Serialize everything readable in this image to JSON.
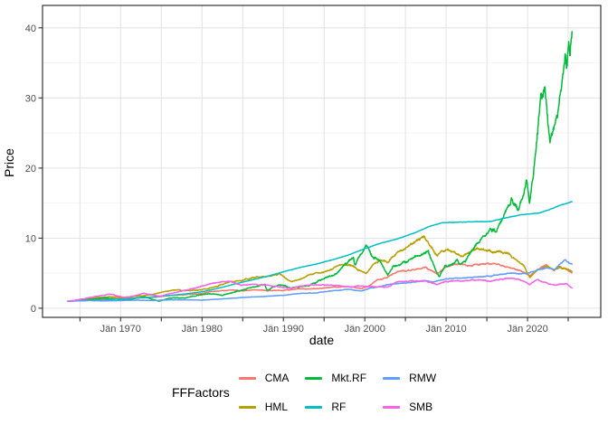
{
  "chart_data": {
    "type": "line",
    "xlabel": "date",
    "ylabel": "Price",
    "legend_title": "FFFactors",
    "x_domain": [
      1960.4,
      2029.0
    ],
    "y_domain": [
      -1.3,
      43.2
    ],
    "x_ticks": [
      {
        "v": 1965,
        "label": ""
      },
      {
        "v": 1970,
        "label": "Jän 1970"
      },
      {
        "v": 1975,
        "label": ""
      },
      {
        "v": 1980,
        "label": "Jän 1980"
      },
      {
        "v": 1985,
        "label": ""
      },
      {
        "v": 1990,
        "label": "Jän 1990"
      },
      {
        "v": 1995,
        "label": ""
      },
      {
        "v": 2000,
        "label": "Jän 2000"
      },
      {
        "v": 2005,
        "label": ""
      },
      {
        "v": 2010,
        "label": "Jän 2010"
      },
      {
        "v": 2015,
        "label": ""
      },
      {
        "v": 2020,
        "label": "Jän 2020"
      },
      {
        "v": 2025,
        "label": ""
      }
    ],
    "y_ticks_major": [
      {
        "v": 0,
        "label": "0"
      },
      {
        "v": 10,
        "label": "10"
      },
      {
        "v": 20,
        "label": "20"
      },
      {
        "v": 30,
        "label": "30"
      },
      {
        "v": 40,
        "label": "40"
      }
    ],
    "y_ticks_minor": [
      5,
      15,
      25,
      35
    ],
    "colors": {
      "grid_major": "#e3e3e3",
      "grid_minor": "#efefef",
      "panel_border": "#333333",
      "tick_mark": "#333333",
      "tick_text": "#4d4d4d"
    },
    "series": [
      {
        "name": "CMA",
        "color": "#F8766D",
        "wiggle": 0.018,
        "points": [
          [
            1963.5,
            1.0
          ],
          [
            1965,
            1.1
          ],
          [
            1966,
            1.2
          ],
          [
            1968,
            1.35
          ],
          [
            1970,
            1.4
          ],
          [
            1972,
            1.45
          ],
          [
            1974,
            1.55
          ],
          [
            1976,
            1.8
          ],
          [
            1978,
            1.95
          ],
          [
            1980,
            2.1
          ],
          [
            1981.2,
            2.4
          ],
          [
            1983.5,
            2.6
          ],
          [
            1985,
            2.5
          ],
          [
            1986.8,
            2.65
          ],
          [
            1988,
            2.5
          ],
          [
            1990,
            2.55
          ],
          [
            1992,
            2.75
          ],
          [
            1994,
            2.8
          ],
          [
            1996,
            3.0
          ],
          [
            1998,
            3.1
          ],
          [
            1999.6,
            2.8
          ],
          [
            2000.4,
            3.1
          ],
          [
            2001.5,
            4.0
          ],
          [
            2002.8,
            4.4
          ],
          [
            2004,
            5.2
          ],
          [
            2006,
            5.5
          ],
          [
            2007.5,
            5.8
          ],
          [
            2008.9,
            4.9
          ],
          [
            2010,
            6.0
          ],
          [
            2011.5,
            6.3
          ],
          [
            2013,
            6.1
          ],
          [
            2015,
            6.4
          ],
          [
            2016.2,
            6.3
          ],
          [
            2017.5,
            5.9
          ],
          [
            2019,
            5.4
          ],
          [
            2020.3,
            4.6
          ],
          [
            2021,
            5.3
          ],
          [
            2022.3,
            6.2
          ],
          [
            2023.2,
            5.5
          ],
          [
            2024,
            5.8
          ],
          [
            2024.8,
            5.6
          ],
          [
            2025.5,
            5.0
          ]
        ]
      },
      {
        "name": "HML",
        "color": "#B79F00",
        "wiggle": 0.02,
        "points": [
          [
            1963.5,
            1.0
          ],
          [
            1965.5,
            1.25
          ],
          [
            1967,
            1.5
          ],
          [
            1968.8,
            1.65
          ],
          [
            1970.3,
            1.55
          ],
          [
            1972,
            1.7
          ],
          [
            1973.8,
            1.95
          ],
          [
            1975,
            2.3
          ],
          [
            1976.8,
            2.65
          ],
          [
            1978,
            2.5
          ],
          [
            1980,
            2.65
          ],
          [
            1981.5,
            3.0
          ],
          [
            1983.5,
            3.8
          ],
          [
            1985,
            4.0
          ],
          [
            1986.5,
            4.4
          ],
          [
            1988.5,
            4.65
          ],
          [
            1989.5,
            4.9
          ],
          [
            1991,
            3.75
          ],
          [
            1992.5,
            4.4
          ],
          [
            1993.8,
            4.95
          ],
          [
            1995,
            5.1
          ],
          [
            1997,
            6.2
          ],
          [
            1998.3,
            6.1
          ],
          [
            1999.2,
            5.5
          ],
          [
            2000.2,
            4.9
          ],
          [
            2001,
            6.2
          ],
          [
            2002,
            6.9
          ],
          [
            2002.8,
            6.5
          ],
          [
            2004,
            8.0
          ],
          [
            2005,
            8.6
          ],
          [
            2006.6,
            9.9
          ],
          [
            2007.3,
            10.2
          ],
          [
            2008,
            9.0
          ],
          [
            2008.9,
            7.4
          ],
          [
            2009.5,
            8.2
          ],
          [
            2010.5,
            8.3
          ],
          [
            2011.8,
            7.4
          ],
          [
            2013,
            8.0
          ],
          [
            2013.8,
            8.6
          ],
          [
            2015,
            8.2
          ],
          [
            2016.5,
            8.0
          ],
          [
            2017.5,
            7.9
          ],
          [
            2018.5,
            7.0
          ],
          [
            2019.5,
            6.2
          ],
          [
            2020.3,
            4.3
          ],
          [
            2021,
            5.3
          ],
          [
            2021.5,
            5.6
          ],
          [
            2022.5,
            6.0
          ],
          [
            2023.3,
            5.4
          ],
          [
            2024,
            5.9
          ],
          [
            2024.7,
            5.6
          ],
          [
            2025.5,
            5.3
          ]
        ]
      },
      {
        "name": "Mkt.RF",
        "color": "#00BA38",
        "wiggle": 0.028,
        "points": [
          [
            1963.5,
            1.0
          ],
          [
            1965,
            1.15
          ],
          [
            1966.8,
            1.3
          ],
          [
            1968,
            1.5
          ],
          [
            1970.5,
            1.15
          ],
          [
            1972.9,
            1.65
          ],
          [
            1974.7,
            1.0
          ],
          [
            1976,
            1.45
          ],
          [
            1978,
            1.5
          ],
          [
            1980.8,
            2.1
          ],
          [
            1982.5,
            1.85
          ],
          [
            1984,
            2.3
          ],
          [
            1986,
            3.0
          ],
          [
            1987.7,
            3.4
          ],
          [
            1987.95,
            2.6
          ],
          [
            1989.7,
            3.4
          ],
          [
            1990.8,
            2.9
          ],
          [
            1993,
            3.2
          ],
          [
            1995,
            4.2
          ],
          [
            1996.5,
            5.0
          ],
          [
            1997.5,
            6.2
          ],
          [
            1998.6,
            7.2
          ],
          [
            1998.8,
            6.1
          ],
          [
            1999.3,
            7.3
          ],
          [
            2000.2,
            8.8
          ],
          [
            2001.1,
            7.2
          ],
          [
            2002,
            6.5
          ],
          [
            2002.8,
            4.7
          ],
          [
            2003.5,
            5.9
          ],
          [
            2004.5,
            6.3
          ],
          [
            2006,
            7.2
          ],
          [
            2007.8,
            8.1
          ],
          [
            2008.7,
            5.5
          ],
          [
            2009.15,
            4.5
          ],
          [
            2009.8,
            6.0
          ],
          [
            2010.5,
            6.2
          ],
          [
            2011.4,
            6.9
          ],
          [
            2011.8,
            6.1
          ],
          [
            2012.5,
            7.0
          ],
          [
            2013.9,
            9.3
          ],
          [
            2014.9,
            10.7
          ],
          [
            2015.6,
            11.3
          ],
          [
            2016.1,
            10.8
          ],
          [
            2017,
            13.0
          ],
          [
            2018.05,
            15.5
          ],
          [
            2018.95,
            13.8
          ],
          [
            2019.9,
            18.5
          ],
          [
            2020.25,
            15.0
          ],
          [
            2021,
            22.0
          ],
          [
            2021.6,
            31.0
          ],
          [
            2021.85,
            29.5
          ],
          [
            2022.1,
            31.5
          ],
          [
            2022.75,
            24.0
          ],
          [
            2023.2,
            26.0
          ],
          [
            2023.7,
            28.0
          ],
          [
            2024.2,
            32.0
          ],
          [
            2024.65,
            36.5
          ],
          [
            2024.85,
            34.0
          ],
          [
            2025.05,
            38.0
          ],
          [
            2025.2,
            36.0
          ],
          [
            2025.5,
            40.3
          ]
        ]
      },
      {
        "name": "RF",
        "color": "#00BFC4",
        "wiggle": 0.002,
        "points": [
          [
            1963.5,
            1.0
          ],
          [
            1966,
            1.1
          ],
          [
            1968,
            1.2
          ],
          [
            1970,
            1.32
          ],
          [
            1972,
            1.45
          ],
          [
            1974,
            1.62
          ],
          [
            1976,
            1.82
          ],
          [
            1978,
            2.05
          ],
          [
            1980,
            2.35
          ],
          [
            1982,
            2.85
          ],
          [
            1984,
            3.45
          ],
          [
            1986,
            4.0
          ],
          [
            1988,
            4.55
          ],
          [
            1990,
            5.2
          ],
          [
            1992,
            5.8
          ],
          [
            1994,
            6.3
          ],
          [
            1996,
            6.9
          ],
          [
            1998,
            7.6
          ],
          [
            2000,
            8.5
          ],
          [
            2002,
            9.3
          ],
          [
            2004,
            9.9
          ],
          [
            2006,
            10.7
          ],
          [
            2008,
            11.7
          ],
          [
            2009.5,
            12.2
          ],
          [
            2012,
            12.3
          ],
          [
            2015.5,
            12.4
          ],
          [
            2017,
            12.8
          ],
          [
            2019,
            13.3
          ],
          [
            2020.5,
            13.5
          ],
          [
            2021.5,
            13.6
          ],
          [
            2023,
            14.2
          ],
          [
            2024,
            14.7
          ],
          [
            2025.5,
            15.2
          ]
        ]
      },
      {
        "name": "RMW",
        "color": "#619CFF",
        "wiggle": 0.015,
        "points": [
          [
            1963.5,
            1.0
          ],
          [
            1966,
            1.1
          ],
          [
            1968,
            1.05
          ],
          [
            1970,
            1.1
          ],
          [
            1972,
            1.15
          ],
          [
            1974,
            1.1
          ],
          [
            1976,
            1.2
          ],
          [
            1978,
            1.2
          ],
          [
            1980,
            1.15
          ],
          [
            1982,
            1.3
          ],
          [
            1984,
            1.45
          ],
          [
            1986,
            1.6
          ],
          [
            1988,
            1.7
          ],
          [
            1990,
            1.85
          ],
          [
            1992,
            2.1
          ],
          [
            1994,
            2.2
          ],
          [
            1996,
            2.5
          ],
          [
            1998,
            2.7
          ],
          [
            1999.6,
            2.45
          ],
          [
            2000.8,
            2.9
          ],
          [
            2002,
            3.1
          ],
          [
            2003,
            3.4
          ],
          [
            2005,
            3.6
          ],
          [
            2007,
            3.9
          ],
          [
            2008.5,
            3.8
          ],
          [
            2010,
            4.2
          ],
          [
            2012,
            4.3
          ],
          [
            2014,
            4.5
          ],
          [
            2015.5,
            4.6
          ],
          [
            2017,
            4.9
          ],
          [
            2018.5,
            5.0
          ],
          [
            2020,
            4.9
          ],
          [
            2020.4,
            5.1
          ],
          [
            2021.5,
            5.6
          ],
          [
            2022.5,
            5.8
          ],
          [
            2023.3,
            5.5
          ],
          [
            2024.3,
            6.6
          ],
          [
            2024.7,
            6.9
          ],
          [
            2025.1,
            6.4
          ],
          [
            2025.5,
            6.3
          ]
        ]
      },
      {
        "name": "SMB",
        "color": "#F564E3",
        "wiggle": 0.02,
        "points": [
          [
            1963.5,
            1.0
          ],
          [
            1965.5,
            1.35
          ],
          [
            1967,
            1.7
          ],
          [
            1968.9,
            2.0
          ],
          [
            1970.5,
            1.5
          ],
          [
            1971.8,
            1.8
          ],
          [
            1972.8,
            2.15
          ],
          [
            1974.8,
            1.7
          ],
          [
            1976.5,
            2.2
          ],
          [
            1978.5,
            2.7
          ],
          [
            1980.5,
            3.3
          ],
          [
            1981.5,
            3.6
          ],
          [
            1983.3,
            3.9
          ],
          [
            1984.8,
            3.3
          ],
          [
            1986,
            3.4
          ],
          [
            1988,
            3.3
          ],
          [
            1990.8,
            2.85
          ],
          [
            1992,
            3.2
          ],
          [
            1994,
            3.35
          ],
          [
            1996,
            3.3
          ],
          [
            1998.4,
            3.0
          ],
          [
            1999.3,
            3.2
          ],
          [
            2001,
            3.1
          ],
          [
            2002.8,
            3.0
          ],
          [
            2004,
            3.8
          ],
          [
            2006,
            3.9
          ],
          [
            2007.5,
            3.9
          ],
          [
            2008.9,
            3.4
          ],
          [
            2010,
            3.8
          ],
          [
            2011.5,
            3.9
          ],
          [
            2013,
            4.0
          ],
          [
            2014,
            4.1
          ],
          [
            2015.5,
            3.8
          ],
          [
            2016.5,
            4.1
          ],
          [
            2018.3,
            4.3
          ],
          [
            2019.5,
            3.9
          ],
          [
            2020.3,
            3.4
          ],
          [
            2021.2,
            4.1
          ],
          [
            2022,
            3.7
          ],
          [
            2023.2,
            3.3
          ],
          [
            2024,
            3.4
          ],
          [
            2024.8,
            3.5
          ],
          [
            2025.5,
            2.85
          ]
        ]
      }
    ]
  }
}
